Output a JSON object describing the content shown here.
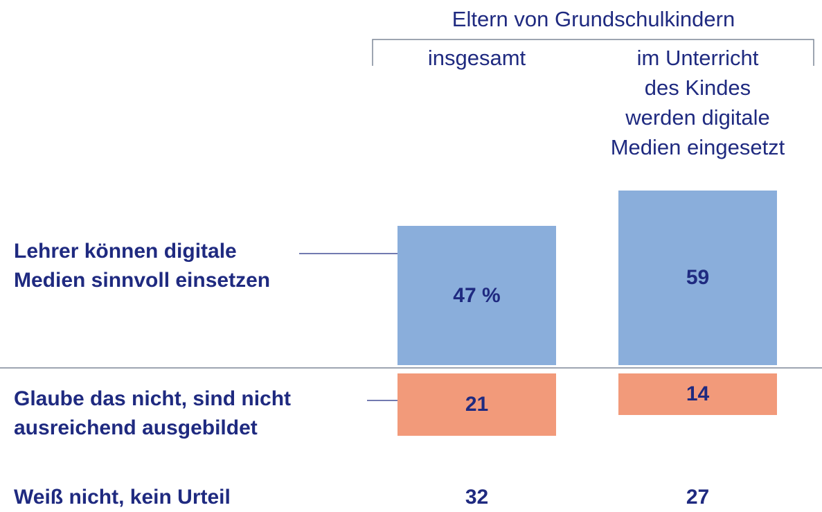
{
  "chart_data": {
    "type": "diverging_bar",
    "group_label": "Eltern von Grundschulkindern",
    "categories": [
      "insgesamt",
      "im Unterricht\ndes Kindes\nwerden digitale\nMedien eingesetzt"
    ],
    "series": [
      {
        "name": "Lehrer können digitale\nMedien sinnvoll einsetzen",
        "color": "#8aaedb",
        "direction": "up",
        "values": [
          47,
          59
        ],
        "value_labels": [
          "47 %",
          "59"
        ]
      },
      {
        "name": "Glaube das nicht, sind nicht\nausreichend ausgebildet",
        "color": "#f29a7a",
        "direction": "down",
        "values": [
          21,
          14
        ]
      }
    ],
    "extra_row": {
      "name": "Weiß nicht, kein Urteil",
      "values": [
        32,
        27
      ]
    }
  }
}
